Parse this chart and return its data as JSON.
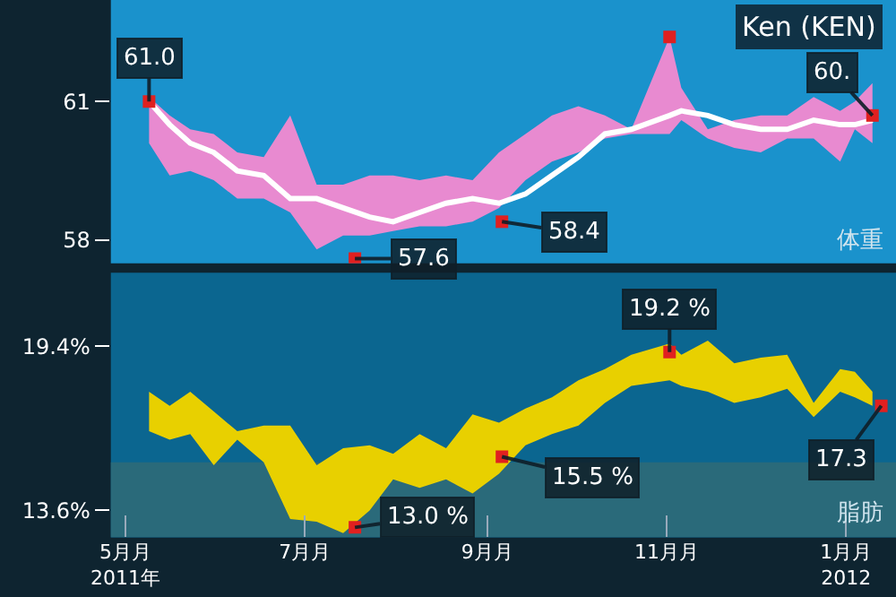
{
  "chart_data": [
    {
      "type": "line",
      "title": "Ken (KEN)",
      "ylabel": "体重",
      "tick_labels": "y",
      "xlim": [
        "2011-04-26",
        "2012-01-18"
      ],
      "xticks": [
        {
          "value": "2011-05-01",
          "label": null
        },
        {
          "value": "2011-07-01",
          "label": null
        },
        {
          "value": "2011-09-01",
          "label": null
        },
        {
          "value": "2011-11-01",
          "label": null
        },
        {
          "value": "2012-01-01",
          "label": null
        }
      ],
      "ylim": [
        57.5,
        63.2
      ],
      "yticks": [
        61,
        58
      ],
      "x": [
        "2011-05-09",
        "2011-05-16",
        "2011-05-23",
        "2011-05-31",
        "2011-06-08",
        "2011-06-17",
        "2011-06-26",
        "2011-07-05",
        "2011-07-14",
        "2011-07-23",
        "2011-07-31",
        "2011-08-09",
        "2011-08-18",
        "2011-08-27",
        "2011-09-05",
        "2011-09-14",
        "2011-09-23",
        "2011-10-02",
        "2011-10-11",
        "2011-10-20",
        "2011-11-02",
        "2011-11-06",
        "2011-11-15",
        "2011-11-24",
        "2011-12-03",
        "2011-12-12",
        "2011-12-21",
        "2011-12-30",
        "2012-01-04",
        "2012-01-10"
      ],
      "series": [
        {
          "color": "#e88ad0",
          "values": [
            null,
            null,
            null,
            null,
            null,
            null,
            null,
            null,
            null,
            null,
            null,
            null,
            null,
            null,
            null,
            null,
            null,
            null,
            null,
            null,
            null,
            null,
            null,
            null,
            null,
            null,
            null,
            null,
            null,
            null
          ],
          "upper": [
            61.1,
            60.7,
            60.4,
            60.3,
            59.9,
            59.8,
            60.7,
            59.2,
            59.2,
            59.4,
            59.4,
            59.3,
            59.4,
            59.3,
            59.9,
            60.3,
            60.7,
            60.9,
            60.7,
            60.4,
            62.4,
            61.3,
            60.4,
            60.6,
            60.7,
            60.7,
            61.1,
            60.8,
            61.0,
            61.4
          ],
          "lower": [
            60.1,
            59.4,
            59.5,
            59.3,
            58.9,
            58.9,
            58.6,
            57.8,
            58.1,
            58.1,
            58.2,
            58.3,
            58.3,
            58.4,
            58.7,
            59.3,
            59.7,
            59.9,
            60.2,
            60.3,
            60.3,
            60.6,
            60.2,
            60.0,
            59.9,
            60.2,
            60.2,
            59.7,
            60.4,
            60.1
          ]
        },
        {
          "color": "#ffffff",
          "line_style": "solid",
          "marker": "none",
          "values": [
            61.0,
            60.5,
            60.1,
            59.9,
            59.5,
            59.4,
            58.9,
            58.9,
            58.7,
            58.5,
            58.4,
            58.6,
            58.8,
            58.9,
            58.8,
            59.0,
            59.4,
            59.8,
            60.3,
            60.4,
            60.7,
            60.8,
            60.7,
            60.5,
            60.4,
            60.4,
            60.6,
            60.5,
            60.5,
            60.6
          ]
        },
        {
          "type": "scatter",
          "color": "#e02020",
          "marker": "square",
          "x": [
            "2011-05-09",
            "2011-07-18",
            "2011-09-06",
            "2011-11-02",
            "2012-01-10"
          ],
          "values": [
            61.0,
            57.6,
            58.4,
            62.4,
            60.7
          ],
          "value_labels": [
            "61.0",
            "57.6",
            "58.4",
            null,
            null
          ]
        }
      ],
      "annotations": [
        {
          "text": "60.",
          "x": "2012-01-10",
          "y": 60.7
        }
      ]
    },
    {
      "type": "line",
      "ylabel": "脂肪",
      "xlim": [
        "2011-04-26",
        "2012-01-18"
      ],
      "xticks": [
        {
          "value": "2011-05-01",
          "label": "5月月\n2011年"
        },
        {
          "value": "2011-07-01",
          "label": "7月月"
        },
        {
          "value": "2011-09-01",
          "label": "9月月"
        },
        {
          "value": "2011-11-01",
          "label": "11月月"
        },
        {
          "value": "2012-01-01",
          "label": "1月月\n2012"
        }
      ],
      "ylim": [
        12.65,
        22.0
      ],
      "yticks": [
        {
          "value": 19.4,
          "label": "19.4%"
        },
        {
          "value": 13.6,
          "label": "13.6%"
        }
      ],
      "bands": [
        {
          "axis": "y",
          "from": 12.65,
          "to": 15.3,
          "color": "#2a6a7a"
        }
      ],
      "x": [
        "2011-05-09",
        "2011-05-16",
        "2011-05-23",
        "2011-05-31",
        "2011-06-08",
        "2011-06-17",
        "2011-06-26",
        "2011-07-05",
        "2011-07-14",
        "2011-07-23",
        "2011-07-31",
        "2011-08-09",
        "2011-08-18",
        "2011-08-27",
        "2011-09-05",
        "2011-09-14",
        "2011-09-23",
        "2011-10-02",
        "2011-10-11",
        "2011-10-20",
        "2011-11-02",
        "2011-11-06",
        "2011-11-15",
        "2011-11-24",
        "2011-12-03",
        "2011-12-12",
        "2011-12-21",
        "2011-12-30",
        "2012-01-04",
        "2012-01-10"
      ],
      "series": [
        {
          "color": "#e8d000",
          "values": [
            null,
            null,
            null,
            null,
            null,
            null,
            null,
            null,
            null,
            null,
            null,
            null,
            null,
            null,
            null,
            null,
            null,
            null,
            null,
            null,
            null,
            null,
            null,
            null,
            null,
            null,
            null,
            null,
            null,
            null
          ],
          "upper": [
            17.8,
            17.3,
            17.8,
            17.1,
            16.4,
            16.6,
            16.6,
            15.2,
            15.8,
            15.9,
            15.6,
            16.3,
            15.8,
            17.0,
            16.7,
            17.2,
            17.6,
            18.2,
            18.6,
            19.1,
            19.5,
            19.1,
            19.6,
            18.8,
            19.0,
            19.1,
            17.4,
            18.6,
            18.5,
            17.8
          ],
          "lower": [
            16.4,
            16.1,
            16.3,
            15.2,
            16.1,
            15.3,
            13.3,
            13.2,
            12.8,
            13.6,
            14.7,
            14.4,
            14.7,
            14.2,
            14.9,
            15.9,
            16.3,
            16.6,
            17.4,
            18.0,
            18.2,
            18.0,
            17.8,
            17.4,
            17.6,
            17.9,
            16.9,
            17.8,
            17.6,
            17.3
          ]
        },
        {
          "type": "scatter",
          "color": "#e02020",
          "marker": "square",
          "x": [
            "2011-07-18",
            "2011-09-06",
            "2011-11-02",
            "2012-01-13"
          ],
          "values": [
            13.0,
            15.5,
            19.2,
            17.3
          ],
          "value_labels": [
            "13.0 %",
            "15.5 %",
            "19.2 %",
            "17.3"
          ]
        }
      ]
    }
  ]
}
